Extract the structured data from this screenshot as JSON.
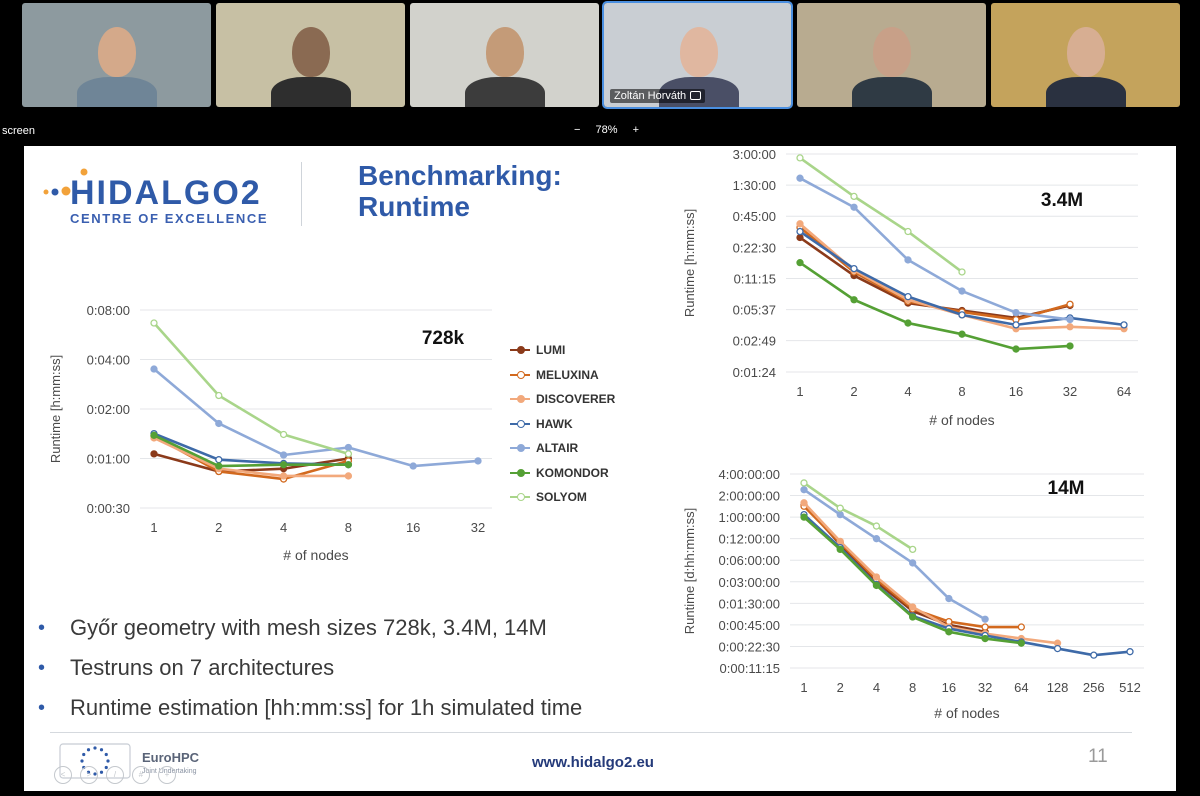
{
  "meeting": {
    "screen_label": "screen",
    "zoom": {
      "minus": "−",
      "value": "78%",
      "plus": "+"
    },
    "participants": [
      {
        "name": "",
        "wall": "#8d9a9f",
        "skin": "#d4a98a",
        "shirt": "#6f8597"
      },
      {
        "name": "",
        "wall": "#c7c0a4",
        "skin": "#8a6a52",
        "shirt": "#2e2e2e"
      },
      {
        "name": "",
        "wall": "#d2d2cc",
        "skin": "#c49b78",
        "shirt": "#3c3c3c"
      },
      {
        "name": "Zoltán Horváth",
        "wall": "#c9ced3",
        "skin": "#e0b7a0",
        "shirt": "#4a4f66"
      },
      {
        "name": "",
        "wall": "#b8ab90",
        "skin": "#c8a088",
        "shirt": "#2f3a44"
      },
      {
        "name": "",
        "wall": "#c4a35c",
        "skin": "#d7ae92",
        "shirt": "#2a3140"
      }
    ]
  },
  "slide": {
    "logo_text": "HIDALGO2",
    "logo_sub": "CENTRE OF EXCELLENCE",
    "title_line1": "Benchmarking:",
    "title_line2": "Runtime",
    "bullet_marker": "•",
    "bullets": [
      "Győr geometry with mesh sizes 728k, 3.4M, 14M",
      "Testruns on 7 architectures",
      "Runtime estimation [hh:mm:ss] for 1h simulated time"
    ],
    "footer_url": "www.hidalgo2.eu",
    "page_number": "11",
    "eurohpc_label": "EuroHPC",
    "eurohpc_sub": "Joint Undertaking"
  },
  "colors": {
    "LUMI": "#8b3a1a",
    "MELUXINA": "#d2691e",
    "DISCOVERER": "#f2a97c",
    "HAWK": "#3e6aa8",
    "ALTAIR": "#8ea9d8",
    "KOMONDOR": "#55a035",
    "SOLYOM": "#a9d58a"
  },
  "chart_data": [
    {
      "id": "c728k",
      "type": "line",
      "annotation": "728k",
      "xlabel": "# of nodes",
      "ylabel": "Runtime [h:mm:ss]",
      "x_ticks": [
        "1",
        "2",
        "4",
        "8",
        "16",
        "32"
      ],
      "y_scale": "log",
      "y_ticks": [
        "0:00:30",
        "0:01:00",
        "0:02:00",
        "0:04:00",
        "0:08:00"
      ],
      "legend_placement": "right",
      "series": [
        {
          "name": "LUMI",
          "values": [
            "0:01:04",
            "0:00:50",
            "0:00:52",
            "0:01:00"
          ],
          "open": false
        },
        {
          "name": "MELUXINA",
          "values": [
            "0:01:22",
            "0:00:50",
            "0:00:45",
            "0:00:58"
          ],
          "open": true
        },
        {
          "name": "DISCOVERER",
          "values": [
            "0:01:20",
            "0:00:52",
            "0:00:47",
            "0:00:47"
          ],
          "open": false
        },
        {
          "name": "HAWK",
          "values": [
            "0:01:25",
            "0:00:59",
            "0:00:56",
            "0:00:55"
          ],
          "open": true
        },
        {
          "name": "ALTAIR",
          "values": [
            "0:03:30",
            "0:01:38",
            "0:01:03",
            "0:01:10",
            "0:00:54",
            "0:00:58"
          ],
          "open": false
        },
        {
          "name": "KOMONDOR",
          "values": [
            "0:01:23",
            "0:00:54",
            "0:00:55",
            "0:00:55"
          ],
          "open": false
        },
        {
          "name": "SOLYOM",
          "values": [
            "0:06:40",
            "0:02:25",
            "0:01:24",
            "0:01:04"
          ],
          "open": true
        }
      ]
    },
    {
      "id": "c34m",
      "type": "line",
      "annotation": "3.4M",
      "xlabel": "# of nodes",
      "ylabel": "Runtime [h:mm:ss]",
      "x_ticks": [
        "1",
        "2",
        "4",
        "8",
        "16",
        "32",
        "64"
      ],
      "y_scale": "log",
      "y_ticks": [
        "0:01:24",
        "0:02:49",
        "0:05:37",
        "0:11:15",
        "0:22:30",
        "0:45:00",
        "1:30:00",
        "3:00:00"
      ],
      "series": [
        {
          "name": "LUMI",
          "values": [
            "0:28:00",
            "0:12:00",
            "0:06:30",
            "0:05:30",
            "0:04:40",
            "0:06:10"
          ],
          "open": false
        },
        {
          "name": "MELUXINA",
          "values": [
            "0:35:00",
            "0:13:00",
            "0:06:45",
            "0:05:20",
            "0:04:30",
            "0:06:20"
          ],
          "open": true
        },
        {
          "name": "DISCOVERER",
          "values": [
            "0:38:00",
            "0:13:30",
            "0:07:00",
            "0:05:00",
            "0:03:40",
            "0:03:50",
            "0:03:40"
          ],
          "open": false
        },
        {
          "name": "HAWK",
          "values": [
            "0:32:00",
            "0:14:00",
            "0:07:30",
            "0:05:00",
            "0:04:00",
            "0:04:40",
            "0:04:00"
          ],
          "open": true
        },
        {
          "name": "ALTAIR",
          "values": [
            "1:45:00",
            "0:55:00",
            "0:17:00",
            "0:08:30",
            "0:05:15",
            "0:04:30"
          ],
          "open": false
        },
        {
          "name": "KOMONDOR",
          "values": [
            "0:16:00",
            "0:07:00",
            "0:04:10",
            "0:03:15",
            "0:02:20",
            "0:02:30"
          ],
          "open": false
        },
        {
          "name": "SOLYOM",
          "values": [
            "2:45:00",
            "1:10:00",
            "0:32:00",
            "0:13:00"
          ],
          "open": true
        }
      ]
    },
    {
      "id": "c14m",
      "type": "line",
      "annotation": "14M",
      "xlabel": "# of nodes",
      "ylabel": "Runtime [d:hh:mm:ss]",
      "x_ticks": [
        "1",
        "2",
        "4",
        "8",
        "16",
        "32",
        "64",
        "128",
        "256",
        "512"
      ],
      "y_scale": "log",
      "y_ticks": [
        "0:00:11:15",
        "0:00:22:30",
        "0:00:45:00",
        "0:01:30:00",
        "0:03:00:00",
        "0:06:00:00",
        "0:12:00:00",
        "1:00:00:00",
        "2:00:00:00",
        "4:00:00:00"
      ],
      "series": [
        {
          "name": "LUMI",
          "values": [
            "1:12:00:00",
            "0:10:00:00",
            "0:03:00:00",
            "0:01:10:00",
            "0:00:45:00",
            "0:00:36:00"
          ],
          "open": false
        },
        {
          "name": "MELUXINA",
          "values": [
            "1:10:00:00",
            "0:10:30:00",
            "0:03:15:00",
            "0:01:15:00",
            "0:00:50:00",
            "0:00:42:00",
            "0:00:42:00"
          ],
          "open": true
        },
        {
          "name": "DISCOVERER",
          "values": [
            "1:14:00:00",
            "0:11:00:00",
            "0:03:30:00",
            "0:01:20:00",
            "0:00:42:00",
            "0:00:34:00",
            "0:00:29:00",
            "0:00:25:00"
          ],
          "open": false
        },
        {
          "name": "HAWK",
          "values": [
            "1:02:00:00",
            "0:09:00:00",
            "0:02:45:00",
            "0:01:00:00",
            "0:00:40:00",
            "0:00:32:00",
            "0:00:26:00",
            "0:00:21:00",
            "0:00:17:00",
            "0:00:19:00"
          ],
          "open": true
        },
        {
          "name": "ALTAIR",
          "values": [
            "2:10:00:00",
            "1:02:00:00",
            "0:12:00:00",
            "0:05:30:00",
            "0:01:45:00",
            "0:00:54:00"
          ],
          "open": false
        },
        {
          "name": "KOMONDOR",
          "values": [
            "1:00:00:00",
            "0:08:30:00",
            "0:02:40:00",
            "0:00:58:00",
            "0:00:36:00",
            "0:00:29:00",
            "0:00:25:00"
          ],
          "open": false
        },
        {
          "name": "SOLYOM",
          "values": [
            "3:00:00:00",
            "1:08:00:00",
            "0:18:00:00",
            "0:08:30:00"
          ],
          "open": true
        }
      ]
    }
  ]
}
